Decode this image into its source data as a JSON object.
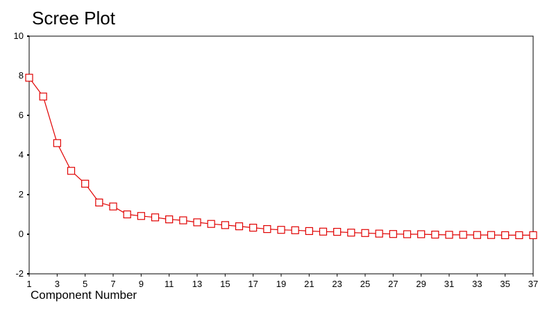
{
  "chart_data": {
    "type": "line",
    "title": "Scree Plot",
    "xlabel": "Component Number",
    "ylabel": "",
    "xlim": [
      1,
      37
    ],
    "ylim": [
      -2,
      10
    ],
    "y_ticks": [
      -2,
      0,
      2,
      4,
      6,
      8,
      10
    ],
    "x_ticks": [
      1,
      3,
      5,
      7,
      9,
      11,
      13,
      15,
      17,
      19,
      21,
      23,
      25,
      27,
      29,
      31,
      33,
      35,
      37
    ],
    "grid": false,
    "legend": "none",
    "series": [
      {
        "color": "#e00000",
        "marker": "open-square",
        "x": [
          1,
          2,
          3,
          4,
          5,
          6,
          7,
          8,
          9,
          10,
          11,
          12,
          13,
          14,
          15,
          16,
          17,
          18,
          19,
          20,
          21,
          22,
          23,
          24,
          25,
          26,
          27,
          28,
          29,
          30,
          31,
          32,
          33,
          34,
          35,
          36,
          37
        ],
        "values": [
          7.9,
          6.95,
          4.6,
          3.2,
          2.55,
          1.6,
          1.4,
          1.0,
          0.92,
          0.85,
          0.75,
          0.7,
          0.6,
          0.52,
          0.46,
          0.4,
          0.33,
          0.26,
          0.22,
          0.2,
          0.16,
          0.13,
          0.12,
          0.08,
          0.06,
          0.03,
          0.01,
          0.0,
          0.0,
          -0.02,
          -0.03,
          -0.03,
          -0.04,
          -0.04,
          -0.05,
          -0.05,
          -0.05
        ]
      }
    ]
  }
}
